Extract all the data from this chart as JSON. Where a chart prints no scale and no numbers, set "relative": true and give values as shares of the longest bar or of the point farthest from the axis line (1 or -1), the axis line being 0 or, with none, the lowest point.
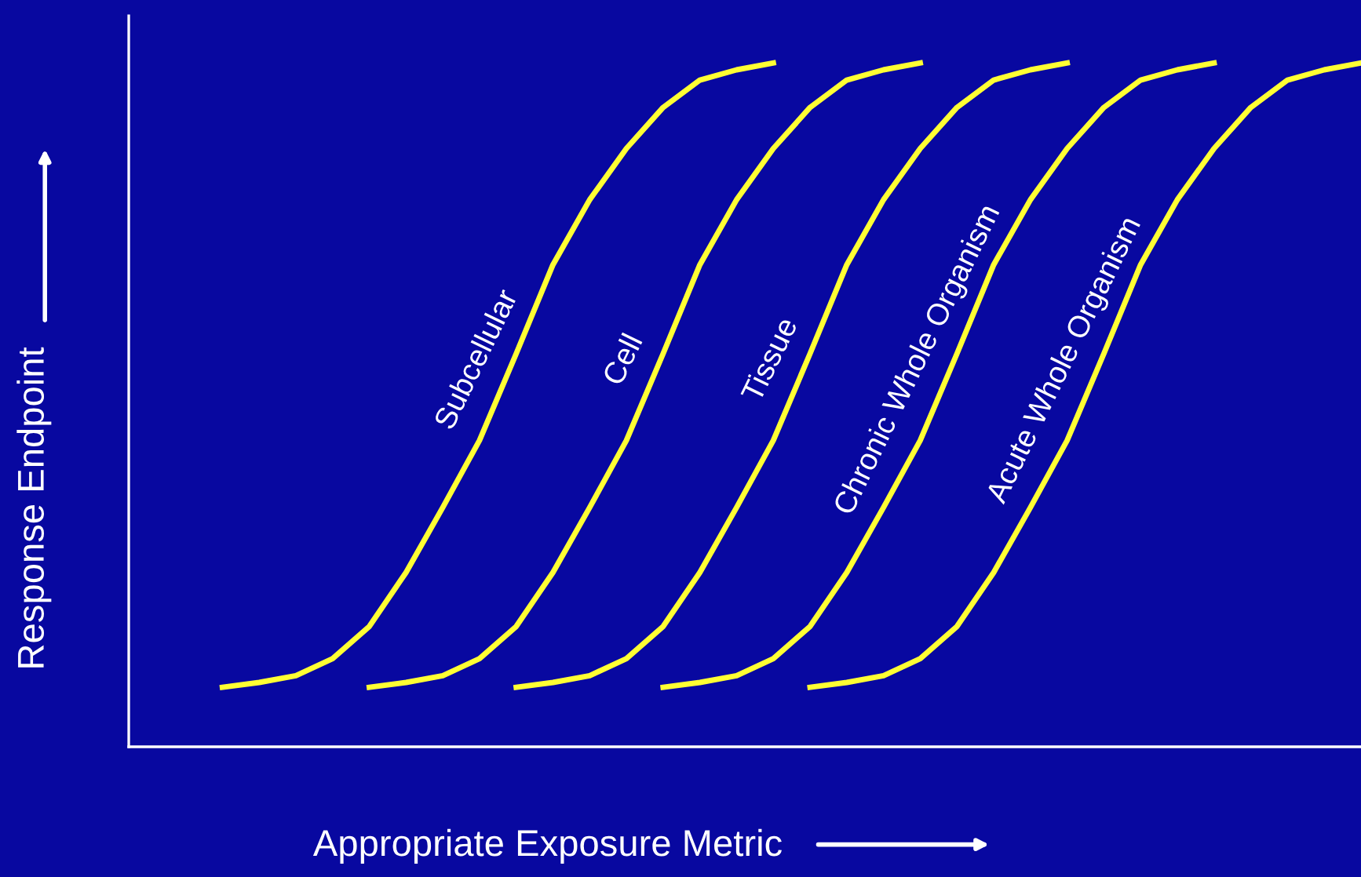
{
  "chart_data": {
    "type": "line",
    "relative": true,
    "xlabel": "Appropriate Exposure Metric",
    "ylabel": "Response Endpoint",
    "marker": "none",
    "line_style": "solid",
    "categories": [
      null,
      null,
      null,
      null,
      null,
      null,
      null,
      null,
      null,
      null,
      null,
      null,
      null,
      null,
      null,
      null,
      null,
      null,
      null,
      null,
      null,
      null,
      null,
      null,
      null,
      null,
      null,
      null,
      null,
      null,
      null,
      null
    ],
    "series": [
      {
        "name": "Subcellular",
        "color": "#ffff33",
        "values": [
          0.087,
          0.094,
          0.104,
          0.129,
          0.176,
          0.255,
          0.35,
          0.448,
          0.575,
          0.705,
          0.8,
          0.875,
          0.935,
          0.975,
          0.99,
          1,
          null,
          null,
          null,
          null,
          null,
          null,
          null,
          null,
          null,
          null,
          null,
          null,
          null,
          null,
          null,
          null
        ]
      },
      {
        "name": "Cell",
        "color": "#ffff33",
        "values": [
          null,
          null,
          null,
          null,
          0.087,
          0.094,
          0.104,
          0.129,
          0.176,
          0.255,
          0.35,
          0.448,
          0.575,
          0.705,
          0.8,
          0.875,
          0.935,
          0.975,
          0.99,
          1,
          null,
          null,
          null,
          null,
          null,
          null,
          null,
          null,
          null,
          null,
          null,
          null
        ]
      },
      {
        "name": "Tissue",
        "color": "#ffff33",
        "values": [
          null,
          null,
          null,
          null,
          null,
          null,
          null,
          null,
          0.087,
          0.094,
          0.104,
          0.129,
          0.176,
          0.255,
          0.35,
          0.448,
          0.575,
          0.705,
          0.8,
          0.875,
          0.935,
          0.975,
          0.99,
          1,
          null,
          null,
          null,
          null,
          null,
          null,
          null,
          null
        ]
      },
      {
        "name": "Chronic Whole Organism",
        "color": "#ffff33",
        "values": [
          null,
          null,
          null,
          null,
          null,
          null,
          null,
          null,
          null,
          null,
          null,
          null,
          0.087,
          0.094,
          0.104,
          0.129,
          0.176,
          0.255,
          0.35,
          0.448,
          0.575,
          0.705,
          0.8,
          0.875,
          0.935,
          0.975,
          0.99,
          1,
          null,
          null,
          null,
          null
        ]
      },
      {
        "name": "Acute Whole Organism",
        "color": "#ffff33",
        "values": [
          null,
          null,
          null,
          null,
          null,
          null,
          null,
          null,
          null,
          null,
          null,
          null,
          null,
          null,
          null,
          null,
          0.087,
          0.094,
          0.104,
          0.129,
          0.176,
          0.255,
          0.35,
          0.448,
          0.575,
          0.705,
          0.8,
          0.875,
          0.935,
          0.975,
          0.99,
          1
        ]
      }
    ]
  }
}
